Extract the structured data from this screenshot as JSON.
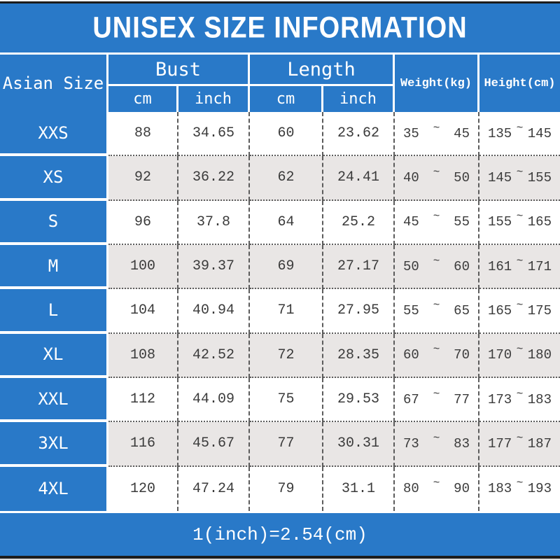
{
  "title": "UNISEX SIZE INFORMATION",
  "header": {
    "size_col": "Asian Size",
    "bust": "Bust",
    "length": "Length",
    "cm": "cm",
    "inch": "inch",
    "weight": "Weight(kg)",
    "height": "Height(cm)",
    "range_separator": "~"
  },
  "footer": {
    "note": "1(inch)=2.54(cm)"
  },
  "colors": {
    "accent_blue": "#2979c8",
    "alt_row_gray": "#e9e6e5",
    "border_black": "#1c1c1c",
    "value_text": "#3b3b3b"
  },
  "chart_data": {
    "type": "table",
    "title": "UNISEX SIZE INFORMATION",
    "column_groups": [
      {
        "label": "Asian Size"
      },
      {
        "label": "Bust",
        "sub": [
          "cm",
          "inch"
        ]
      },
      {
        "label": "Length",
        "sub": [
          "cm",
          "inch"
        ]
      },
      {
        "label": "Weight(kg)"
      },
      {
        "label": "Height(cm)"
      }
    ],
    "rows": [
      {
        "size": "XXS",
        "bust_cm": "88",
        "bust_inch": "34.65",
        "length_cm": "60",
        "length_inch": "23.62",
        "weight_kg": [
          "35",
          "45"
        ],
        "height_cm": [
          "135",
          "145"
        ]
      },
      {
        "size": "XS",
        "bust_cm": "92",
        "bust_inch": "36.22",
        "length_cm": "62",
        "length_inch": "24.41",
        "weight_kg": [
          "40",
          "50"
        ],
        "height_cm": [
          "145",
          "155"
        ]
      },
      {
        "size": "S",
        "bust_cm": "96",
        "bust_inch": "37.8",
        "length_cm": "64",
        "length_inch": "25.2",
        "weight_kg": [
          "45",
          "55"
        ],
        "height_cm": [
          "155",
          "165"
        ]
      },
      {
        "size": "M",
        "bust_cm": "100",
        "bust_inch": "39.37",
        "length_cm": "69",
        "length_inch": "27.17",
        "weight_kg": [
          "50",
          "60"
        ],
        "height_cm": [
          "161",
          "171"
        ]
      },
      {
        "size": "L",
        "bust_cm": "104",
        "bust_inch": "40.94",
        "length_cm": "71",
        "length_inch": "27.95",
        "weight_kg": [
          "55",
          "65"
        ],
        "height_cm": [
          "165",
          "175"
        ]
      },
      {
        "size": "XL",
        "bust_cm": "108",
        "bust_inch": "42.52",
        "length_cm": "72",
        "length_inch": "28.35",
        "weight_kg": [
          "60",
          "70"
        ],
        "height_cm": [
          "170",
          "180"
        ]
      },
      {
        "size": "XXL",
        "bust_cm": "112",
        "bust_inch": "44.09",
        "length_cm": "75",
        "length_inch": "29.53",
        "weight_kg": [
          "67",
          "77"
        ],
        "height_cm": [
          "173",
          "183"
        ]
      },
      {
        "size": "3XL",
        "bust_cm": "116",
        "bust_inch": "45.67",
        "length_cm": "77",
        "length_inch": "30.31",
        "weight_kg": [
          "73",
          "83"
        ],
        "height_cm": [
          "177",
          "187"
        ]
      },
      {
        "size": "4XL",
        "bust_cm": "120",
        "bust_inch": "47.24",
        "length_cm": "79",
        "length_inch": "31.1",
        "weight_kg": [
          "80",
          "90"
        ],
        "height_cm": [
          "183",
          "193"
        ]
      }
    ],
    "footnote": "1(inch)=2.54(cm)"
  }
}
